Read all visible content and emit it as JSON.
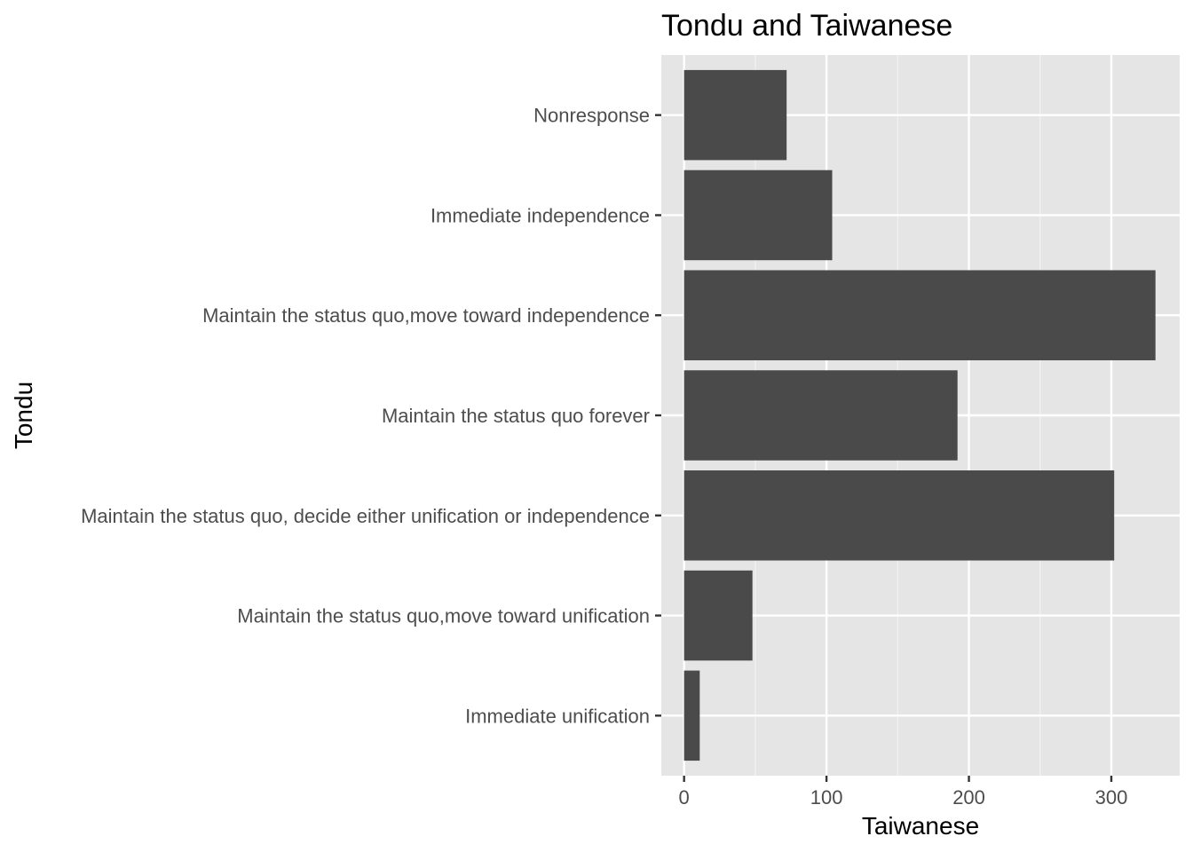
{
  "chart_data": {
    "type": "bar",
    "orientation": "horizontal",
    "title": "Tondu and  Taiwanese",
    "xlabel": "Taiwanese",
    "ylabel": "Tondu",
    "categories": [
      "Immediate unification",
      "Maintain the status quo,move toward unification",
      "Maintain the status quo, decide either unification or independence",
      "Maintain the status quo forever",
      "Maintain the status quo,move toward independence",
      "Immediate independence",
      "Nonresponse"
    ],
    "values": [
      11,
      48,
      302,
      192,
      331,
      104,
      72
    ],
    "xlim": [
      -16,
      348
    ],
    "xticks": [
      0,
      100,
      200,
      300
    ],
    "xtick_labels": [
      "0",
      "100",
      "200",
      "300"
    ],
    "grid": true,
    "colors": {
      "bar": "#4a4a4a",
      "panel_background": "#e5e5e5",
      "grid_major": "#ffffff",
      "grid_minor": "#f2f2f2",
      "tick": "#333333",
      "tick_text": "#4d4d4d"
    }
  }
}
